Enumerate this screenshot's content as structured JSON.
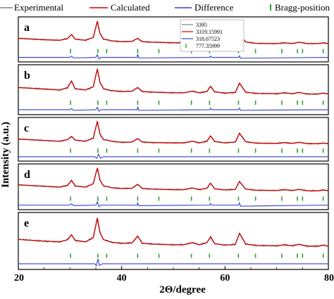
{
  "chart_data": {
    "type": "line",
    "xlabel": "2Θ/degree",
    "ylabel": "Intensity (a.u.)",
    "xlim": [
      20,
      80
    ],
    "x_ticks": [
      20,
      40,
      60,
      80
    ],
    "legend": {
      "placement": "top",
      "entries": [
        {
          "name": "Experimental",
          "color": "#808080"
        },
        {
          "name": "Calculated",
          "color": "#d00000"
        },
        {
          "name": "Difference",
          "color": "#3040d0"
        },
        {
          "name": "Bragg-position",
          "color": "#2ca02c"
        }
      ]
    },
    "inner_legend": {
      "panel": "a",
      "entries": [
        {
          "label": "3395",
          "color": "#808080"
        },
        {
          "label": "3319.15991",
          "color": "#d00000"
        },
        {
          "label": "318.67523",
          "color": "#3040d0"
        },
        {
          "label": "777.35999",
          "color": "#2ca02c"
        }
      ]
    },
    "colors": {
      "experimental": "#808080",
      "calculated": "#d00000",
      "difference": "#3040d0",
      "bragg": "#2ca02c"
    },
    "panels": [
      {
        "label": "a",
        "calculated": {
          "x": [
            20,
            25,
            28,
            29.5,
            30.3,
            31,
            33,
            34.5,
            35.3,
            35.8,
            36.5,
            37.2,
            38,
            40,
            42,
            43.1,
            44,
            46,
            50,
            52,
            53.7,
            55,
            56.5,
            57.2,
            58,
            60,
            62,
            62.8,
            64,
            66,
            70,
            71.5,
            73,
            74.3,
            76,
            78,
            79,
            80
          ],
          "y": [
            0.33,
            0.28,
            0.26,
            0.32,
            0.47,
            0.3,
            0.26,
            0.36,
            0.95,
            0.5,
            0.3,
            0.28,
            0.24,
            0.21,
            0.22,
            0.33,
            0.21,
            0.19,
            0.17,
            0.17,
            0.22,
            0.16,
            0.22,
            0.36,
            0.21,
            0.16,
            0.18,
            0.45,
            0.2,
            0.15,
            0.14,
            0.17,
            0.14,
            0.19,
            0.14,
            0.14,
            0.17,
            0.14
          ]
        },
        "difference": {
          "x": [
            20,
            30,
            30.3,
            30.7,
            35,
            35.3,
            35.6,
            36,
            43,
            43.1,
            43.3,
            57,
            57.2,
            57.4,
            62.6,
            62.8,
            63,
            80
          ],
          "y": [
            0.0,
            0.0,
            0.05,
            -0.02,
            0.0,
            0.1,
            -0.06,
            0.0,
            0.0,
            0.12,
            -0.02,
            0.0,
            0.05,
            0.0,
            0.0,
            0.06,
            -0.03,
            0.0
          ]
        },
        "bragg": [
          30.1,
          35.4,
          37.1,
          43.1,
          47.2,
          53.5,
          57.0,
          62.6,
          65.9,
          71.0,
          74.0,
          75.0,
          79.0
        ]
      },
      {
        "label": "b",
        "calculated": {
          "x": [
            20,
            25,
            28,
            29.5,
            30.3,
            31,
            33,
            34.5,
            35.3,
            35.8,
            36.5,
            37.2,
            38,
            40,
            42,
            43.1,
            44,
            46,
            50,
            52,
            53.7,
            55,
            56.5,
            57.2,
            58,
            60,
            62,
            62.8,
            64,
            66,
            70,
            71.5,
            73,
            74.3,
            76,
            78,
            79,
            80
          ],
          "y": [
            0.36,
            0.31,
            0.28,
            0.35,
            0.57,
            0.32,
            0.28,
            0.38,
            0.96,
            0.52,
            0.32,
            0.29,
            0.26,
            0.23,
            0.24,
            0.36,
            0.23,
            0.21,
            0.19,
            0.19,
            0.24,
            0.19,
            0.23,
            0.4,
            0.22,
            0.18,
            0.2,
            0.5,
            0.21,
            0.17,
            0.16,
            0.19,
            0.16,
            0.2,
            0.15,
            0.15,
            0.18,
            0.15
          ]
        },
        "difference": {
          "x": [
            20,
            30,
            30.3,
            30.7,
            35,
            35.3,
            35.6,
            36,
            43,
            43.1,
            43.3,
            57,
            57.2,
            57.4,
            62.6,
            62.8,
            63,
            80
          ],
          "y": [
            0.0,
            0.0,
            0.04,
            -0.02,
            0.0,
            0.08,
            -0.05,
            0.0,
            0.0,
            0.1,
            -0.02,
            0.0,
            0.05,
            0.0,
            0.0,
            0.05,
            -0.02,
            0.0
          ]
        },
        "bragg": [
          30.1,
          35.4,
          37.1,
          43.1,
          47.2,
          53.5,
          57.0,
          62.6,
          65.9,
          71.0,
          74.0,
          75.0,
          79.0
        ]
      },
      {
        "label": "c",
        "calculated": {
          "x": [
            20,
            25,
            28,
            29.5,
            30.3,
            31,
            33,
            34.5,
            35.3,
            35.8,
            36.5,
            37.2,
            38,
            40,
            42,
            43.1,
            44,
            46,
            50,
            52,
            53.7,
            55,
            56.5,
            57.2,
            58,
            60,
            62,
            62.8,
            64,
            66,
            70,
            71.5,
            73,
            74.3,
            76,
            78,
            79,
            80
          ],
          "y": [
            0.3,
            0.25,
            0.22,
            0.28,
            0.4,
            0.26,
            0.22,
            0.34,
            0.97,
            0.48,
            0.28,
            0.26,
            0.22,
            0.18,
            0.19,
            0.32,
            0.19,
            0.17,
            0.16,
            0.16,
            0.22,
            0.16,
            0.22,
            0.42,
            0.21,
            0.16,
            0.19,
            0.52,
            0.2,
            0.15,
            0.14,
            0.17,
            0.14,
            0.18,
            0.13,
            0.13,
            0.15,
            0.13
          ]
        },
        "difference": {
          "x": [
            20,
            34.8,
            35.2,
            35.5,
            35.9,
            36.5,
            80
          ],
          "y": [
            0.0,
            0.0,
            -0.06,
            0.1,
            -0.05,
            0.0,
            0.0
          ]
        },
        "bragg": [
          30.1,
          35.4,
          37.1,
          43.1,
          47.2,
          53.5,
          57.0,
          62.6,
          65.9,
          71.0,
          74.0,
          75.0,
          79.0
        ]
      },
      {
        "label": "d",
        "calculated": {
          "x": [
            20,
            25,
            28,
            29.5,
            30.3,
            31,
            33,
            34.5,
            35.3,
            35.8,
            36.5,
            37.2,
            38,
            40,
            42,
            43.1,
            44,
            46,
            50,
            52,
            53.7,
            55,
            56.5,
            57.2,
            58,
            60,
            62,
            62.8,
            64,
            66,
            70,
            71.5,
            73,
            74.3,
            76,
            78,
            79,
            80
          ],
          "y": [
            0.36,
            0.31,
            0.28,
            0.34,
            0.52,
            0.32,
            0.28,
            0.4,
            0.96,
            0.52,
            0.32,
            0.3,
            0.26,
            0.23,
            0.24,
            0.38,
            0.23,
            0.21,
            0.19,
            0.19,
            0.25,
            0.19,
            0.24,
            0.42,
            0.22,
            0.18,
            0.2,
            0.48,
            0.21,
            0.17,
            0.16,
            0.19,
            0.16,
            0.2,
            0.15,
            0.15,
            0.18,
            0.15
          ]
        },
        "difference": {
          "x": [
            20,
            30,
            30.3,
            30.7,
            35,
            35.3,
            35.6,
            36,
            43,
            43.1,
            43.3,
            57,
            57.2,
            57.4,
            62.6,
            62.8,
            63,
            80
          ],
          "y": [
            0.0,
            0.0,
            0.05,
            -0.02,
            0.0,
            0.12,
            -0.06,
            0.0,
            0.0,
            0.08,
            -0.02,
            0.0,
            0.06,
            0.0,
            0.0,
            0.08,
            -0.04,
            0.0
          ]
        },
        "bragg": [
          30.1,
          35.4,
          37.1,
          43.1,
          47.2,
          53.5,
          57.0,
          62.6,
          65.9,
          71.0,
          74.0,
          75.0,
          79.0
        ]
      },
      {
        "label": "e",
        "calculated": {
          "x": [
            20,
            25,
            28,
            29.5,
            30.3,
            31,
            33,
            34.5,
            35.3,
            35.8,
            36.5,
            37.2,
            38,
            40,
            42,
            43.1,
            44,
            46,
            50,
            52,
            53.7,
            55,
            56.5,
            57.2,
            58,
            60,
            62,
            62.8,
            64,
            66,
            70,
            71.5,
            73,
            74.3,
            76,
            78,
            79,
            80
          ],
          "y": [
            0.33,
            0.28,
            0.26,
            0.32,
            0.46,
            0.3,
            0.26,
            0.38,
            0.93,
            0.52,
            0.32,
            0.29,
            0.25,
            0.22,
            0.23,
            0.42,
            0.22,
            0.2,
            0.18,
            0.18,
            0.24,
            0.18,
            0.24,
            0.4,
            0.21,
            0.17,
            0.19,
            0.5,
            0.2,
            0.16,
            0.15,
            0.18,
            0.15,
            0.19,
            0.14,
            0.14,
            0.17,
            0.14
          ]
        },
        "difference": {
          "x": [
            20,
            34.8,
            35.1,
            35.4,
            35.7,
            36.3,
            80
          ],
          "y": [
            0.0,
            0.0,
            -0.06,
            0.14,
            -0.05,
            0.0,
            0.0
          ]
        },
        "bragg": [
          30.1,
          35.4,
          37.1,
          43.1,
          47.2,
          53.5,
          57.0,
          62.6,
          65.9,
          71.0,
          74.0,
          75.0,
          79.0
        ]
      }
    ]
  }
}
